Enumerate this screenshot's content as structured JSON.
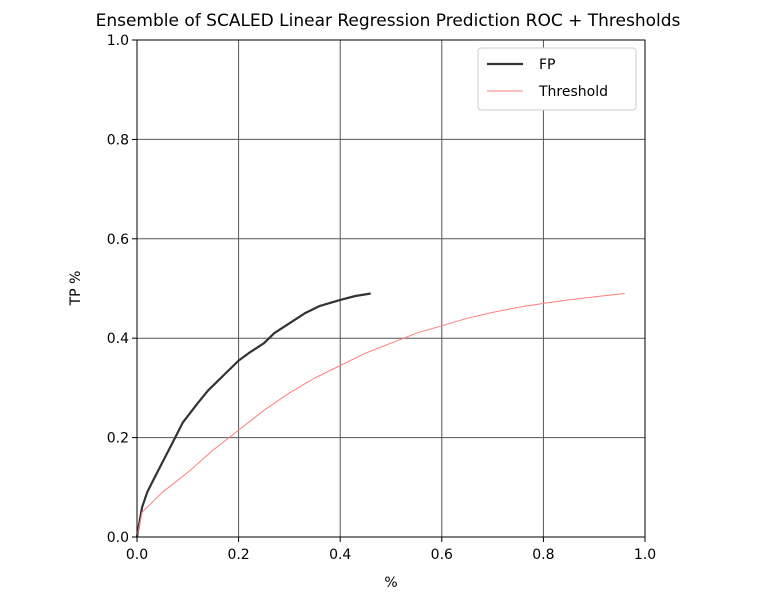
{
  "chart_data": {
    "type": "line",
    "title": "Ensemble of SCALED Linear Regression Prediction ROC + Thresholds",
    "xlabel": "%",
    "ylabel": "TP %",
    "xlim": [
      0.0,
      1.0
    ],
    "ylim": [
      0.0,
      1.0
    ],
    "xticks": [
      "0.0",
      "0.2",
      "0.4",
      "0.6",
      "0.8",
      "1.0"
    ],
    "yticks": [
      "0.0",
      "0.2",
      "0.4",
      "0.6",
      "0.8",
      "1.0"
    ],
    "grid": true,
    "legend_position": "top-right",
    "series": [
      {
        "name": "FP",
        "color": "#333333",
        "x": [
          0.0,
          0.005,
          0.01,
          0.02,
          0.03,
          0.05,
          0.07,
          0.09,
          0.12,
          0.14,
          0.17,
          0.2,
          0.22,
          0.25,
          0.27,
          0.3,
          0.33,
          0.36,
          0.4,
          0.43,
          0.46
        ],
        "y": [
          0.0,
          0.03,
          0.06,
          0.09,
          0.11,
          0.15,
          0.19,
          0.23,
          0.27,
          0.295,
          0.325,
          0.355,
          0.37,
          0.39,
          0.41,
          0.43,
          0.45,
          0.465,
          0.477,
          0.485,
          0.49
        ]
      },
      {
        "name": "Threshold",
        "color": "#ff7f7f",
        "x": [
          0.0,
          0.01,
          0.02,
          0.05,
          0.1,
          0.15,
          0.2,
          0.25,
          0.3,
          0.35,
          0.4,
          0.45,
          0.5,
          0.55,
          0.6,
          0.65,
          0.7,
          0.75,
          0.8,
          0.85,
          0.9,
          0.96
        ],
        "y": [
          0.0,
          0.05,
          0.06,
          0.09,
          0.13,
          0.175,
          0.215,
          0.255,
          0.29,
          0.32,
          0.345,
          0.37,
          0.39,
          0.41,
          0.425,
          0.44,
          0.452,
          0.462,
          0.47,
          0.477,
          0.483,
          0.49
        ]
      }
    ]
  }
}
